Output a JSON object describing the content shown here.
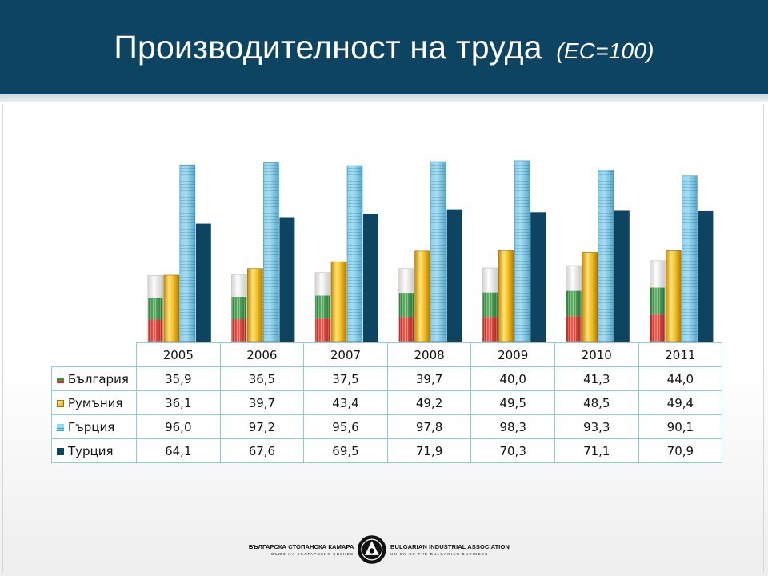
{
  "title": {
    "main": "Производителност на труда",
    "sub": "(ЕС=100)"
  },
  "colors": {
    "header": "#0d4462",
    "bulgaria_red": "#e52d1e",
    "bulgaria_green": "#2f9a3c",
    "romania": "#f2c42c",
    "greece": "#5cb8dd",
    "turkey": "#0d4462",
    "table_border": "#8fcce0"
  },
  "chart_data": {
    "type": "bar",
    "categories": [
      "2005",
      "2006",
      "2007",
      "2008",
      "2009",
      "2010",
      "2011"
    ],
    "series": [
      {
        "name": "България",
        "values": [
          35.9,
          36.5,
          37.5,
          39.7,
          40.0,
          41.3,
          44.0
        ]
      },
      {
        "name": "Румъния",
        "values": [
          36.1,
          39.7,
          43.4,
          49.2,
          49.5,
          48.5,
          49.4
        ]
      },
      {
        "name": "Гърция",
        "values": [
          96.0,
          97.2,
          95.6,
          97.8,
          98.3,
          93.3,
          90.1
        ]
      },
      {
        "name": "Турция",
        "values": [
          64.1,
          67.6,
          69.5,
          71.9,
          70.3,
          71.1,
          70.9
        ]
      }
    ],
    "table_values": [
      [
        "35,9",
        "36,5",
        "37,5",
        "39,7",
        "40,0",
        "41,3",
        "44,0"
      ],
      [
        "36,1",
        "39,7",
        "43,4",
        "49,2",
        "49,5",
        "48,5",
        "49,4"
      ],
      [
        "96,0",
        "97,2",
        "95,6",
        "97,8",
        "98,3",
        "93,3",
        "90,1"
      ],
      [
        "64,1",
        "67,6",
        "69,5",
        "71,9",
        "70,3",
        "71,1",
        "70,9"
      ]
    ],
    "ylim": [
      0,
      100
    ],
    "grid": false,
    "legend": "data-table"
  },
  "footer": {
    "bg_name": "БЪЛГАРСКА СТОПАНСКА КАМАРА",
    "bg_sub": "СЪЮЗ НА БЪЛГАРСКИЯ БИЗНЕС",
    "en_name": "BULGARIAN INDUSTRIAL ASSOCIATION",
    "en_sub": "UNION OF THE BULGARIAN BUSINESS"
  }
}
